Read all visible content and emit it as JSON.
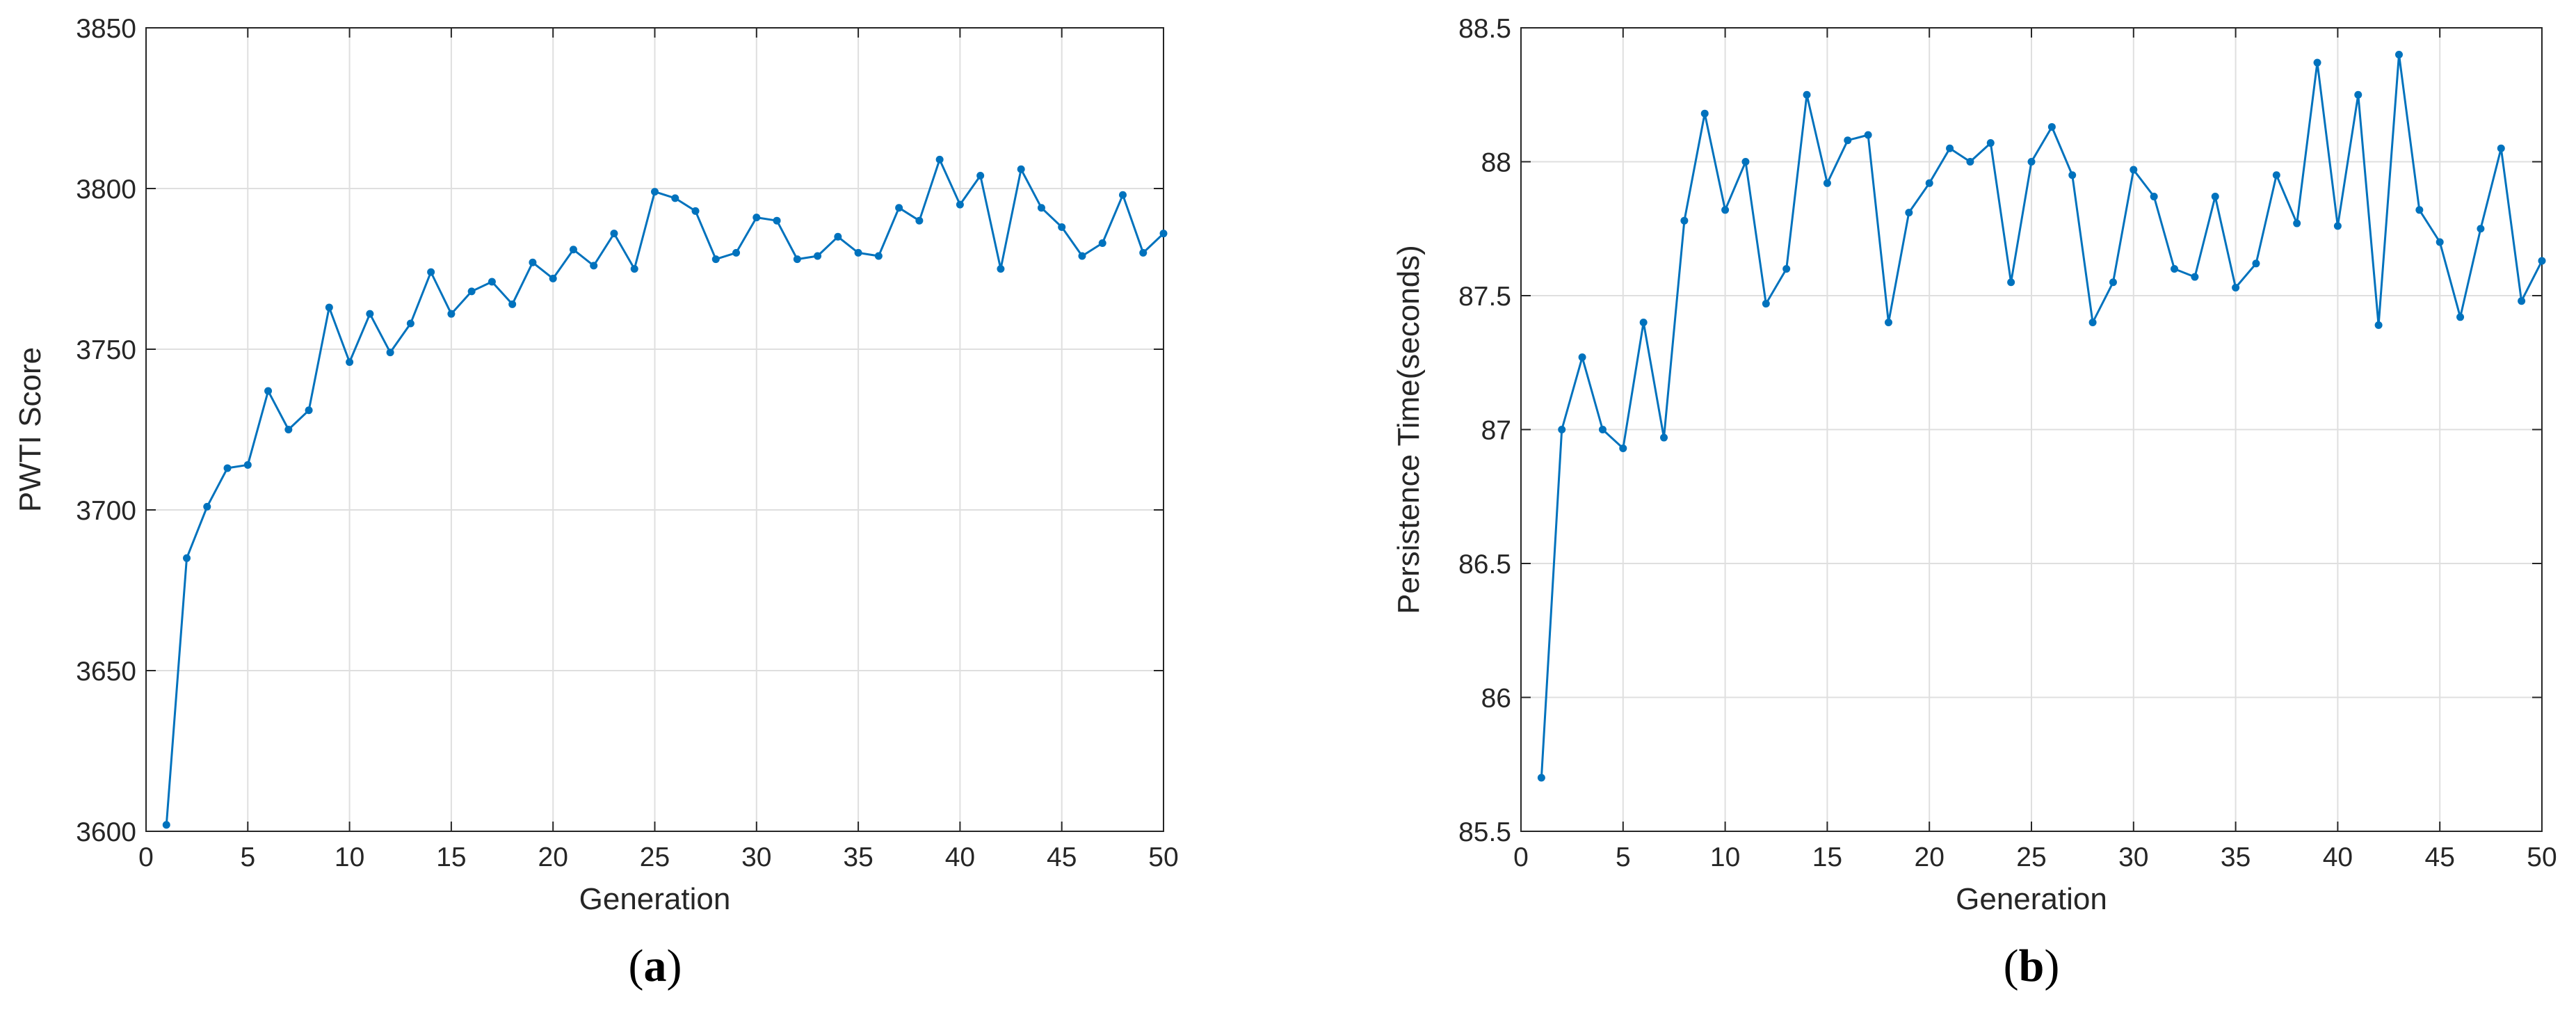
{
  "chart_data": [
    {
      "type": "line",
      "panel_label": {
        "open": "(",
        "letter": "a",
        "close": ")"
      },
      "xlabel": "Generation",
      "ylabel": "PWTI Score",
      "xlim": [
        0,
        50
      ],
      "ylim": [
        3600,
        3850
      ],
      "xticks": [
        0,
        5,
        10,
        15,
        20,
        25,
        30,
        35,
        40,
        45,
        50
      ],
      "yticks": [
        3600,
        3650,
        3700,
        3750,
        3800,
        3850
      ],
      "grid": true,
      "color": "#0072BD",
      "series": [
        {
          "x": [
            1,
            2,
            3,
            4,
            5,
            6,
            7,
            8,
            9,
            10,
            11,
            12,
            13,
            14,
            15,
            16,
            17,
            18,
            19,
            20,
            21,
            22,
            23,
            24,
            25,
            26,
            27,
            28,
            29,
            30,
            31,
            32,
            33,
            34,
            35,
            36,
            37,
            38,
            39,
            40,
            41,
            42,
            43,
            44,
            45,
            46,
            47,
            48,
            49,
            50
          ],
          "values": [
            3602,
            3685,
            3701,
            3713,
            3714,
            3737,
            3725,
            3731,
            3763,
            3746,
            3761,
            3749,
            3758,
            3774,
            3761,
            3768,
            3771,
            3764,
            3777,
            3772,
            3781,
            3776,
            3786,
            3775,
            3799,
            3797,
            3793,
            3778,
            3780,
            3791,
            3790,
            3778,
            3779,
            3785,
            3780,
            3779,
            3794,
            3790,
            3809,
            3795,
            3804,
            3775,
            3806,
            3794,
            3788,
            3779,
            3783,
            3798,
            3780,
            3786
          ]
        }
      ]
    },
    {
      "type": "line",
      "panel_label": {
        "open": "(",
        "letter": "b",
        "close": ")"
      },
      "xlabel": "Generation",
      "ylabel": "Persistence Time(seconds)",
      "xlim": [
        0,
        50
      ],
      "ylim": [
        85.5,
        88.5
      ],
      "xticks": [
        0,
        5,
        10,
        15,
        20,
        25,
        30,
        35,
        40,
        45,
        50
      ],
      "yticks": [
        85.5,
        86,
        86.5,
        87,
        87.5,
        88,
        88.5
      ],
      "grid": true,
      "color": "#0072BD",
      "series": [
        {
          "x": [
            1,
            2,
            3,
            4,
            5,
            6,
            7,
            8,
            9,
            10,
            11,
            12,
            13,
            14,
            15,
            16,
            17,
            18,
            19,
            20,
            21,
            22,
            23,
            24,
            25,
            26,
            27,
            28,
            29,
            30,
            31,
            32,
            33,
            34,
            35,
            36,
            37,
            38,
            39,
            40,
            41,
            42,
            43,
            44,
            45,
            46,
            47,
            48,
            49,
            50
          ],
          "values": [
            85.7,
            87.0,
            87.27,
            87.0,
            86.93,
            87.4,
            86.97,
            87.78,
            88.18,
            87.82,
            88.0,
            87.47,
            87.6,
            88.25,
            87.92,
            88.08,
            88.1,
            87.4,
            87.81,
            87.92,
            88.05,
            88.0,
            88.07,
            87.55,
            88.0,
            88.13,
            87.95,
            87.4,
            87.55,
            87.97,
            87.87,
            87.6,
            87.57,
            87.87,
            87.53,
            87.62,
            87.95,
            87.77,
            88.37,
            87.76,
            88.25,
            87.39,
            88.4,
            87.82,
            87.7,
            87.42,
            87.75,
            88.05,
            87.48,
            87.63
          ]
        }
      ]
    }
  ]
}
